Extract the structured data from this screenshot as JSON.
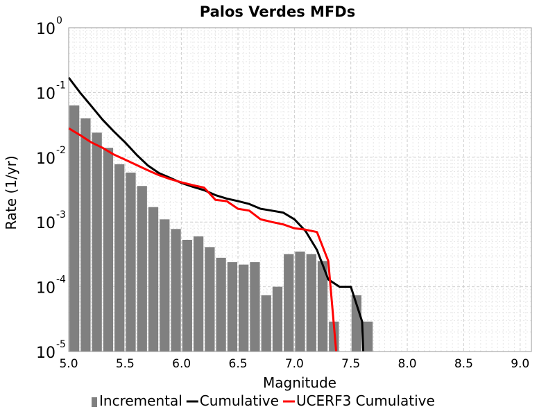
{
  "chart_data": {
    "type": "bar",
    "title": "Palos Verdes MFDs",
    "xlabel": "Magnitude",
    "ylabel": "Rate (1/yr)",
    "xlim": [
      5.0,
      9.1
    ],
    "ylim": [
      1e-05,
      1
    ],
    "yscale": "log",
    "grid": true,
    "legend_position": "bottom",
    "x_ticks": [
      "5.0",
      "5.5",
      "6.0",
      "6.5",
      "7.0",
      "7.5",
      "8.0",
      "8.5",
      "9.0"
    ],
    "y_ticks": [
      {
        "base": "10",
        "exp": "0"
      },
      {
        "base": "10",
        "exp": "-1"
      },
      {
        "base": "10",
        "exp": "-2"
      },
      {
        "base": "10",
        "exp": "-3"
      },
      {
        "base": "10",
        "exp": "-4"
      },
      {
        "base": "10",
        "exp": "-5"
      }
    ],
    "series": [
      {
        "name": "Incremental",
        "kind": "bar",
        "color": "#808080",
        "x": [
          5.05,
          5.15,
          5.25,
          5.35,
          5.45,
          5.55,
          5.65,
          5.75,
          5.85,
          5.95,
          6.05,
          6.15,
          6.25,
          6.35,
          6.45,
          6.55,
          6.65,
          6.75,
          6.85,
          6.95,
          7.05,
          7.15,
          7.25,
          7.35,
          7.45,
          7.55,
          7.65
        ],
        "values": [
          0.063,
          0.04,
          0.024,
          0.014,
          0.0078,
          0.0058,
          0.0036,
          0.0017,
          0.0011,
          0.00078,
          0.00053,
          0.0006,
          0.00041,
          0.00028,
          0.00024,
          0.00022,
          0.00024,
          7.4e-05,
          0.0001,
          0.00032,
          0.00035,
          0.00032,
          0.00025,
          2.9e-05,
          1e-05,
          7.4e-05,
          2.9e-05
        ]
      },
      {
        "name": "Cumulative",
        "kind": "line",
        "color": "#000000",
        "x": [
          5.0,
          5.1,
          5.2,
          5.3,
          5.4,
          5.5,
          5.6,
          5.7,
          5.8,
          5.9,
          6.0,
          6.1,
          6.2,
          6.3,
          6.4,
          6.5,
          6.6,
          6.7,
          6.8,
          6.9,
          7.0,
          7.1,
          7.2,
          7.3,
          7.4,
          7.5,
          7.6,
          7.61
        ],
        "values": [
          0.17,
          0.1,
          0.062,
          0.038,
          0.025,
          0.017,
          0.011,
          0.0075,
          0.0057,
          0.0048,
          0.004,
          0.0035,
          0.0031,
          0.0026,
          0.0023,
          0.0021,
          0.0019,
          0.0016,
          0.0015,
          0.0014,
          0.0011,
          0.00072,
          0.00037,
          0.00013,
          0.0001,
          0.0001,
          2.9e-05,
          1e-05
        ]
      },
      {
        "name": "UCERF3 Cumulative",
        "kind": "line",
        "color": "#ff0000",
        "x": [
          5.0,
          5.1,
          5.2,
          5.3,
          5.4,
          5.5,
          5.6,
          5.7,
          5.8,
          5.9,
          6.0,
          6.1,
          6.2,
          6.3,
          6.4,
          6.5,
          6.6,
          6.7,
          6.8,
          6.9,
          7.0,
          7.1,
          7.2,
          7.3,
          7.37
        ],
        "values": [
          0.028,
          0.022,
          0.017,
          0.014,
          0.011,
          0.0092,
          0.0076,
          0.0063,
          0.0053,
          0.0046,
          0.0041,
          0.0037,
          0.0034,
          0.0022,
          0.0021,
          0.0016,
          0.0015,
          0.0011,
          0.001,
          0.00092,
          0.0008,
          0.00076,
          0.0007,
          0.00025,
          1e-05
        ]
      }
    ]
  }
}
